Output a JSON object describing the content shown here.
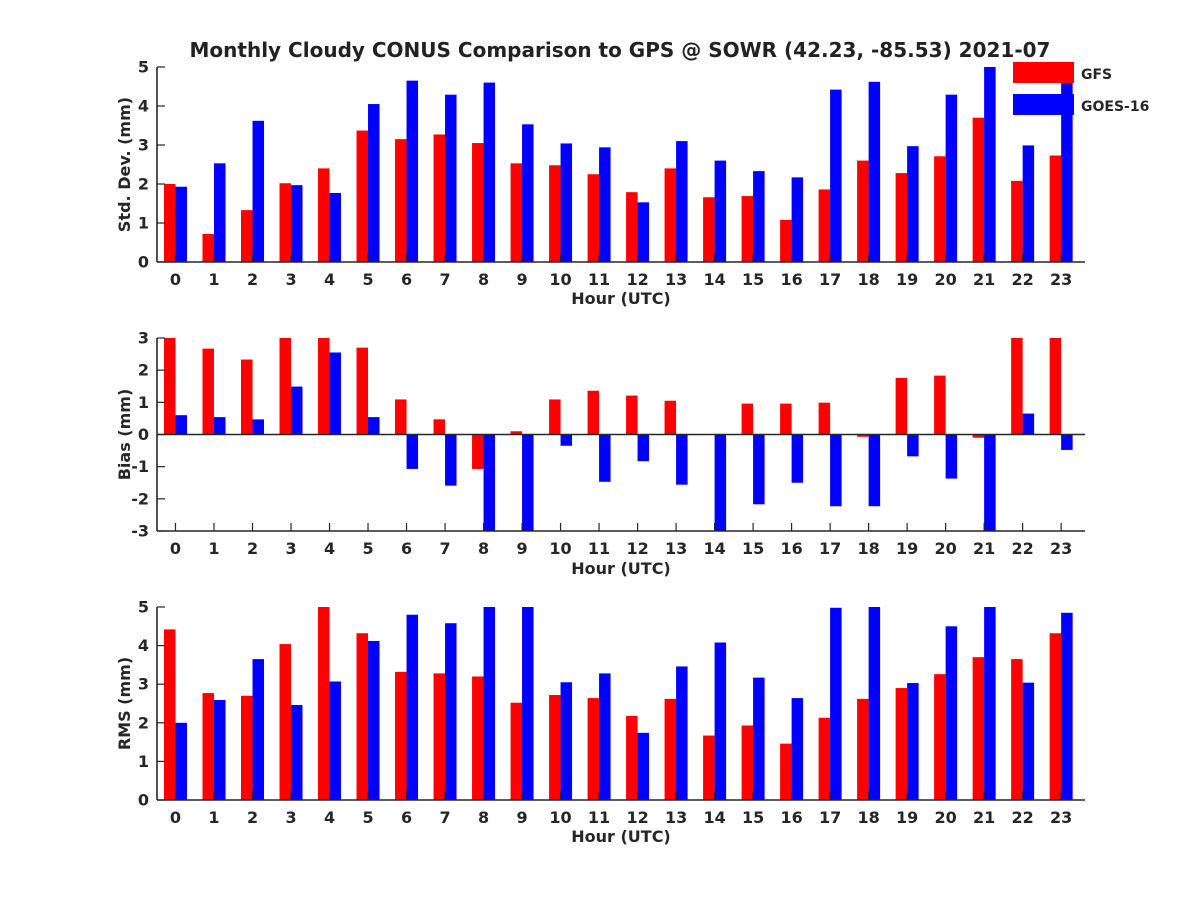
{
  "title": "Monthly Cloudy CONUS Comparison to GPS @ SOWR (42.23, -85.53) 2021-07",
  "colors": {
    "GFS": "#ff0000",
    "GOES-16": "#0000ff"
  },
  "chart_data": [
    {
      "type": "bar",
      "categories": [
        "0",
        "1",
        "2",
        "3",
        "4",
        "5",
        "6",
        "7",
        "8",
        "9",
        "10",
        "11",
        "12",
        "13",
        "14",
        "15",
        "16",
        "17",
        "18",
        "19",
        "20",
        "21",
        "22",
        "23"
      ],
      "xlabel": "Hour (UTC)",
      "ylabel": "Std. Dev. (mm)",
      "ylim": [
        0,
        5
      ],
      "yticks": [
        "0",
        "1",
        "2",
        "3",
        "4",
        "5"
      ],
      "legend": {
        "placement": "top-right",
        "entries": [
          "GFS",
          "GOES-16"
        ]
      },
      "series": [
        {
          "name": "GFS",
          "values": [
            2.0,
            0.72,
            1.33,
            2.02,
            2.4,
            3.37,
            3.15,
            3.27,
            3.05,
            2.53,
            2.48,
            2.25,
            1.79,
            2.4,
            1.66,
            1.69,
            1.08,
            1.86,
            2.6,
            2.28,
            2.71,
            3.7,
            2.08,
            2.73
          ]
        },
        {
          "name": "GOES-16",
          "values": [
            1.93,
            2.53,
            3.62,
            1.97,
            1.77,
            4.05,
            4.65,
            4.29,
            4.6,
            3.53,
            3.04,
            2.94,
            1.53,
            3.1,
            2.6,
            2.33,
            2.17,
            4.42,
            4.62,
            2.97,
            4.29,
            5.0,
            2.99,
            4.6
          ]
        }
      ]
    },
    {
      "type": "bar",
      "categories": [
        "0",
        "1",
        "2",
        "3",
        "4",
        "5",
        "6",
        "7",
        "8",
        "9",
        "10",
        "11",
        "12",
        "13",
        "14",
        "15",
        "16",
        "17",
        "18",
        "19",
        "20",
        "21",
        "22",
        "23"
      ],
      "xlabel": "Hour (UTC)",
      "ylabel": "Bias (mm)",
      "ylim": [
        -3,
        3
      ],
      "yticks": [
        "-3",
        "-2",
        "-1",
        "0",
        "1",
        "2",
        "3"
      ],
      "series": [
        {
          "name": "GFS",
          "values": [
            3.0,
            2.67,
            2.33,
            3.0,
            3.0,
            2.7,
            1.09,
            0.47,
            -1.07,
            0.1,
            1.09,
            1.36,
            1.21,
            1.05,
            0.0,
            0.96,
            0.96,
            0.99,
            -0.07,
            1.76,
            1.83,
            -0.1,
            3.0,
            3.0
          ]
        },
        {
          "name": "GOES-16",
          "values": [
            0.6,
            0.54,
            0.47,
            1.49,
            2.55,
            0.54,
            -1.07,
            -1.59,
            -3.0,
            -3.0,
            -0.35,
            -1.47,
            -0.83,
            -1.56,
            -3.0,
            -2.17,
            -1.5,
            -2.23,
            -2.23,
            -0.68,
            -1.37,
            -3.0,
            0.65,
            -0.48
          ]
        }
      ]
    },
    {
      "type": "bar",
      "categories": [
        "0",
        "1",
        "2",
        "3",
        "4",
        "5",
        "6",
        "7",
        "8",
        "9",
        "10",
        "11",
        "12",
        "13",
        "14",
        "15",
        "16",
        "17",
        "18",
        "19",
        "20",
        "21",
        "22",
        "23"
      ],
      "xlabel": "Hour (UTC)",
      "ylabel": "RMS (mm)",
      "ylim": [
        0,
        5
      ],
      "yticks": [
        "0",
        "1",
        "2",
        "3",
        "4",
        "5"
      ],
      "series": [
        {
          "name": "GFS",
          "values": [
            4.42,
            2.77,
            2.7,
            4.04,
            5.0,
            4.32,
            3.32,
            3.28,
            3.2,
            2.52,
            2.72,
            2.64,
            2.18,
            2.62,
            1.67,
            1.93,
            1.46,
            2.13,
            2.62,
            2.9,
            3.26,
            3.7,
            3.65,
            4.32
          ]
        },
        {
          "name": "GOES-16",
          "values": [
            2.0,
            2.59,
            3.65,
            2.46,
            3.07,
            4.12,
            4.8,
            4.58,
            5.0,
            5.0,
            3.05,
            3.28,
            1.74,
            3.46,
            4.08,
            3.17,
            2.64,
            4.98,
            5.0,
            3.03,
            4.5,
            5.0,
            3.04,
            4.85
          ]
        }
      ]
    }
  ]
}
